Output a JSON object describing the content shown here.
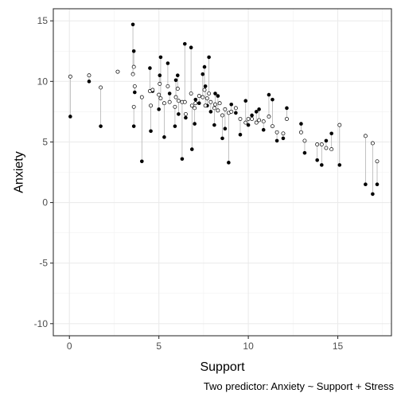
{
  "chart_data": {
    "type": "scatter",
    "xlabel": "Support",
    "ylabel": "Anxiety",
    "caption": "Two predictor: Anxiety ~ Support + Stress",
    "xlim": [
      -0.9,
      18.0
    ],
    "ylim": [
      -11.0,
      16.0
    ],
    "x_ticks": [
      0,
      5,
      10,
      15
    ],
    "x_tick_labels": [
      "0",
      "5",
      "10",
      "15"
    ],
    "y_ticks": [
      -10,
      -5,
      0,
      5,
      10,
      15
    ],
    "y_tick_labels": [
      "-10",
      "-5",
      "0",
      "5",
      "10",
      "15"
    ],
    "grid": true,
    "series": [
      {
        "marker": "filled-circle",
        "description": "observed",
        "x": [
          0.05,
          1.1,
          1.75,
          2.7,
          3.55,
          3.6,
          3.65,
          3.6,
          4.05,
          4.5,
          4.55,
          4.65,
          5.0,
          5.05,
          5.1,
          5.3,
          5.5,
          5.6,
          5.9,
          5.95,
          6.05,
          6.1,
          6.3,
          6.45,
          6.5,
          6.8,
          6.85,
          7.0,
          7.05,
          7.25,
          7.45,
          7.55,
          7.6,
          7.7,
          7.8,
          7.9,
          8.1,
          8.15,
          8.3,
          8.4,
          8.55,
          8.7,
          8.9,
          9.05,
          9.3,
          9.55,
          9.85,
          10.0,
          10.2,
          10.45,
          10.6,
          10.85,
          11.15,
          11.35,
          11.6,
          11.95,
          12.15,
          12.95,
          13.15,
          13.85,
          14.1,
          14.35,
          14.65,
          15.1,
          16.55,
          16.95,
          17.2
        ],
        "y": [
          7.1,
          10.0,
          6.3,
          10.8,
          14.7,
          12.5,
          9.1,
          6.3,
          3.4,
          11.1,
          5.9,
          9.2,
          7.7,
          10.5,
          12.0,
          5.4,
          11.5,
          9.0,
          6.3,
          10.1,
          10.5,
          7.3,
          3.6,
          13.1,
          7.0,
          12.8,
          4.4,
          6.5,
          8.5,
          8.2,
          10.6,
          11.2,
          9.6,
          8.0,
          12.0,
          7.5,
          6.4,
          9.0,
          8.8,
          8.2,
          5.3,
          6.1,
          3.3,
          8.1,
          7.4,
          5.6,
          8.4,
          6.4,
          7.2,
          7.5,
          7.7,
          6.0,
          8.9,
          8.5,
          5.1,
          5.3,
          7.8,
          6.5,
          4.1,
          3.5,
          3.1,
          5.1,
          5.7,
          3.1,
          1.5,
          0.7,
          1.5
        ]
      },
      {
        "marker": "open-circle",
        "description": "fitted",
        "x": [
          0.05,
          1.1,
          1.75,
          2.7,
          3.55,
          3.6,
          3.65,
          3.6,
          4.05,
          4.5,
          4.55,
          4.65,
          5.0,
          5.05,
          5.1,
          5.3,
          5.5,
          5.6,
          5.9,
          5.95,
          6.05,
          6.1,
          6.3,
          6.45,
          6.5,
          6.8,
          6.85,
          7.0,
          7.05,
          7.25,
          7.45,
          7.55,
          7.6,
          7.7,
          7.8,
          7.9,
          8.1,
          8.15,
          8.3,
          8.4,
          8.55,
          8.7,
          8.9,
          9.05,
          9.3,
          9.55,
          9.85,
          10.0,
          10.2,
          10.45,
          10.6,
          10.85,
          11.15,
          11.35,
          11.6,
          11.95,
          12.15,
          12.95,
          13.15,
          13.85,
          14.1,
          14.35,
          14.65,
          15.1,
          16.55,
          16.95,
          17.2
        ],
        "y": [
          10.4,
          10.5,
          9.5,
          10.8,
          10.6,
          11.2,
          9.6,
          7.9,
          8.7,
          9.2,
          8.0,
          9.3,
          8.9,
          9.8,
          8.6,
          8.2,
          9.6,
          8.3,
          7.9,
          8.7,
          9.4,
          8.4,
          8.3,
          8.3,
          7.3,
          9.0,
          8.0,
          7.8,
          8.2,
          8.8,
          8.7,
          9.3,
          8.0,
          8.6,
          9.0,
          8.3,
          7.8,
          8.1,
          7.6,
          8.2,
          7.2,
          7.7,
          7.4,
          7.5,
          7.8,
          6.9,
          6.6,
          6.9,
          6.9,
          6.6,
          6.8,
          6.7,
          7.1,
          6.3,
          5.8,
          5.7,
          6.9,
          5.8,
          5.1,
          4.8,
          4.8,
          4.5,
          4.4,
          6.4,
          5.5,
          4.9,
          3.4
        ]
      }
    ]
  }
}
